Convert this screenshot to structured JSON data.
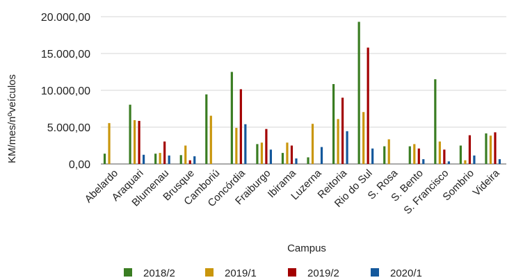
{
  "chart_data": {
    "type": "bar",
    "title": "",
    "xlabel": "Campus",
    "ylabel": "KM/mes/nºveículos",
    "ylim": [
      0,
      20000
    ],
    "yticks": [
      0,
      5000,
      10000,
      15000,
      20000
    ],
    "ytick_labels": [
      "0,00",
      "5.000,00",
      "10.000,00",
      "15.000,00",
      "20.000,00"
    ],
    "grid": true,
    "legend_position": "bottom",
    "categories": [
      "Abelardo",
      "Araquari",
      "Blumenau",
      "Brusque",
      "Camboriú",
      "Concórdia",
      "Fraiburgo",
      "Ibirama",
      "Luzerna",
      "Reitoria",
      "Rio do Sul",
      "S. Rosa",
      "S. Bento",
      "S. Francisco",
      "Sombrio",
      "Videira"
    ],
    "series": [
      {
        "name": "2018/2",
        "color": "#3a7d22",
        "values": [
          1400,
          8050,
          1400,
          1200,
          9450,
          12500,
          2700,
          1500,
          900,
          10850,
          19300,
          2400,
          2400,
          11500,
          2500,
          4150
        ]
      },
      {
        "name": "2019/1",
        "color": "#c9960c",
        "values": [
          5550,
          5950,
          1500,
          2500,
          6550,
          4900,
          2900,
          2900,
          5450,
          6100,
          7050,
          3350,
          2700,
          3050,
          500,
          3850
        ]
      },
      {
        "name": "2019/2",
        "color": "#a30000",
        "values": [
          0,
          5850,
          3050,
          500,
          0,
          10150,
          4750,
          2500,
          0,
          9000,
          15800,
          0,
          2100,
          1950,
          3900,
          4300
        ]
      },
      {
        "name": "2020/1",
        "color": "#14589c",
        "values": [
          0,
          1250,
          1150,
          1050,
          0,
          5400,
          1950,
          750,
          2300,
          4450,
          2100,
          0,
          650,
          350,
          1150,
          650
        ]
      }
    ]
  }
}
